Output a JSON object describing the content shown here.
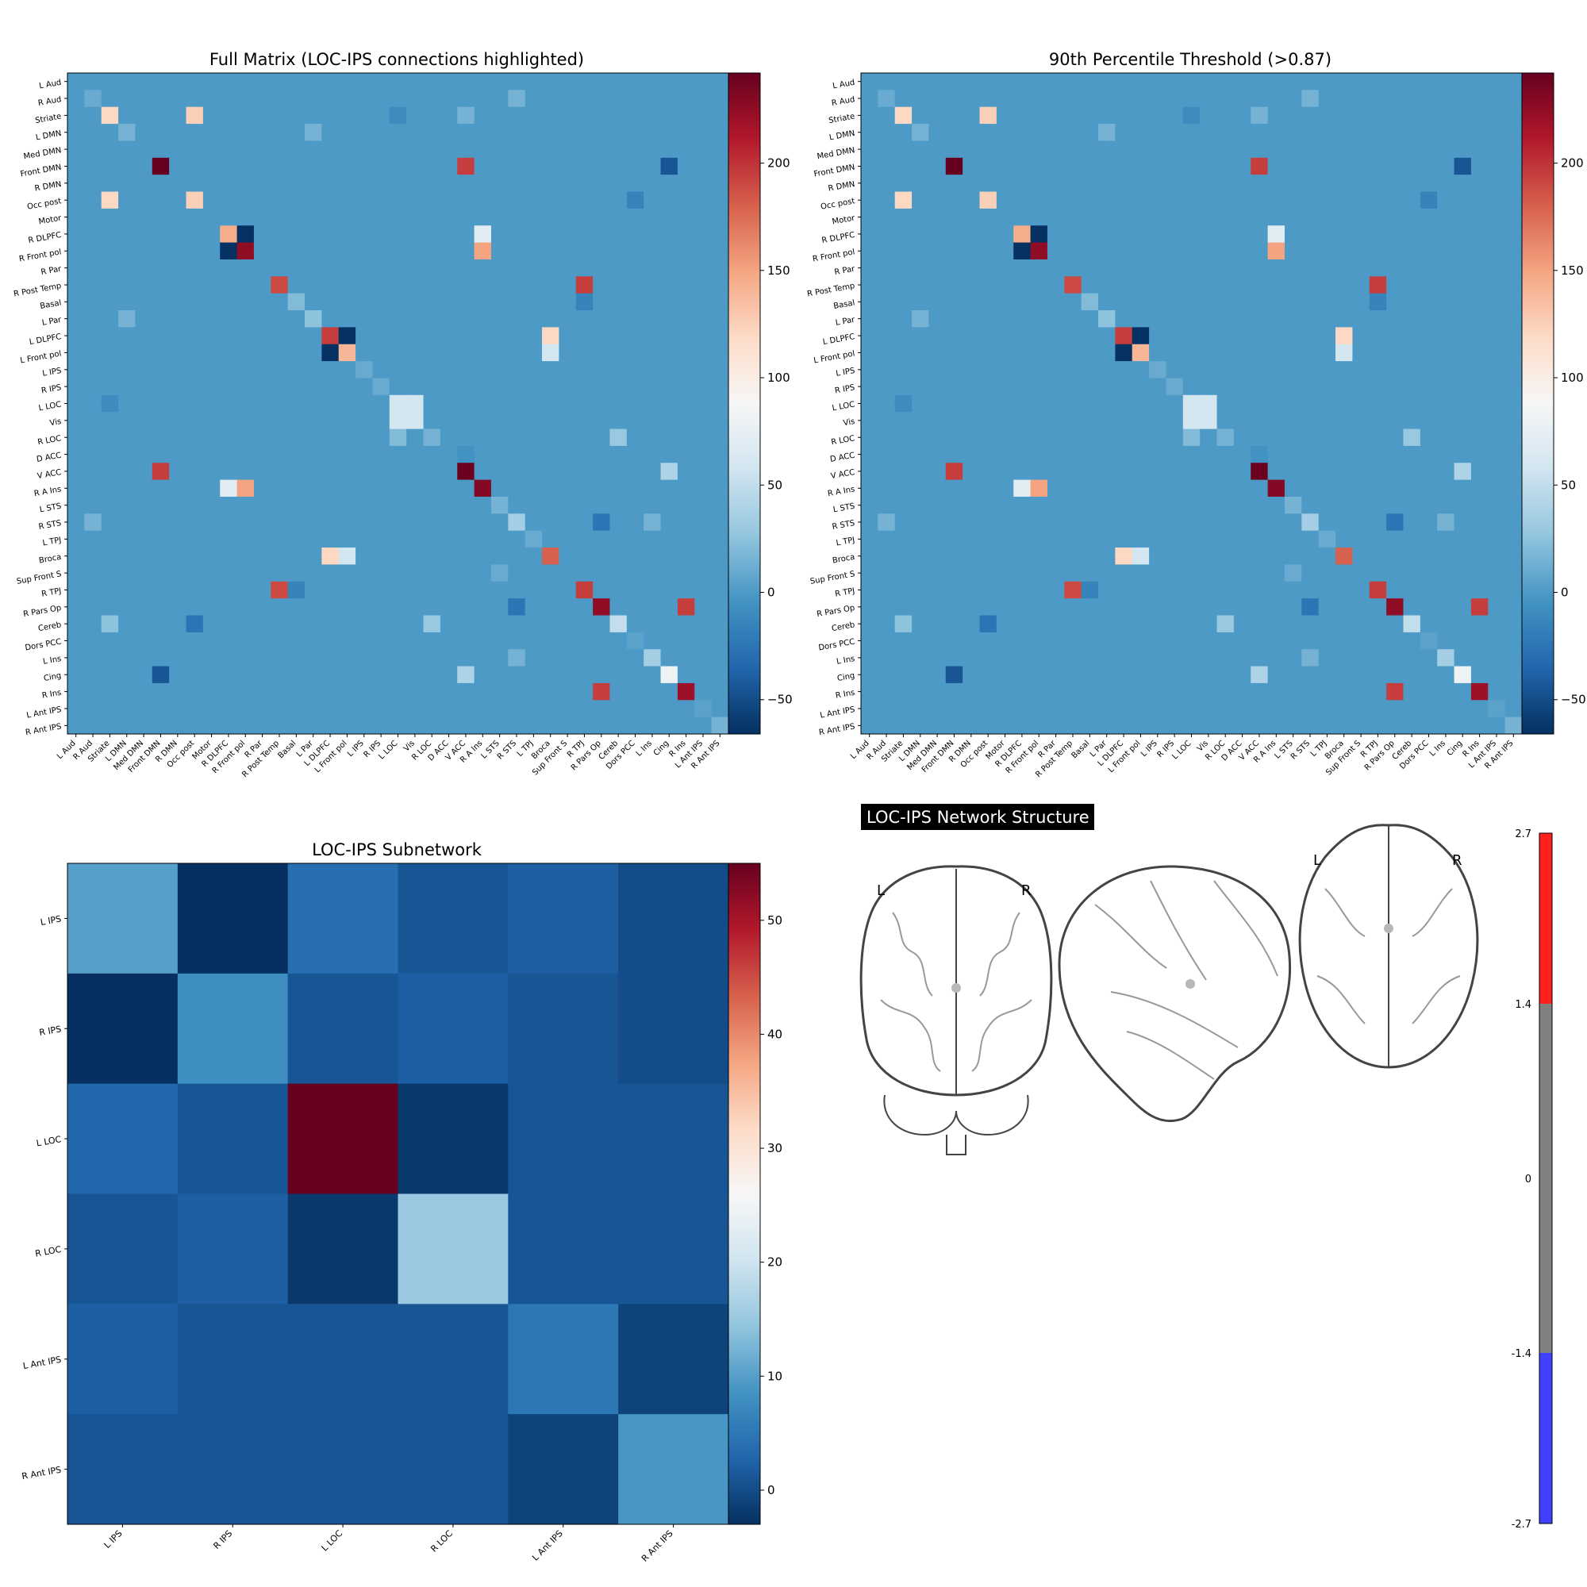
{
  "regions": [
    "L Aud",
    "R Aud",
    "Striate",
    "L DMN",
    "Med DMN",
    "Front DMN",
    "R DMN",
    "Occ post",
    "Motor",
    "R DLPFC",
    "R Front pol",
    "R Par",
    "R Post Temp",
    "Basal",
    "L Par",
    "L DLPFC",
    "L Front pol",
    "L IPS",
    "R IPS",
    "L LOC",
    "Vis",
    "R LOC",
    "D ACC",
    "V ACC",
    "R A Ins",
    "L STS",
    "R STS",
    "L TPJ",
    "Broca",
    "Sup Front S",
    "R TPJ",
    "R Pars Op",
    "Cereb",
    "Dors PCC",
    "L Ins",
    "Cing",
    "R Ins",
    "L Ant IPS",
    "R Ant IPS"
  ],
  "chart_data": [
    {
      "type": "heatmap",
      "title": "Full Matrix (LOC-IPS connections highlighted)",
      "colormap": "RdBu_r",
      "vmin": -66,
      "vmax": 242,
      "colorbar_ticks": [
        -50,
        0,
        50,
        100,
        150,
        200
      ],
      "background_value": 0,
      "cells": [
        [
          2,
          2,
          120
        ],
        [
          2,
          7,
          125
        ],
        [
          7,
          2,
          120
        ],
        [
          7,
          7,
          125
        ],
        [
          5,
          5,
          242
        ],
        [
          5,
          23,
          195
        ],
        [
          5,
          35,
          -45
        ],
        [
          23,
          5,
          195
        ],
        [
          23,
          23,
          240
        ],
        [
          35,
          5,
          -45
        ],
        [
          35,
          35,
          80
        ],
        [
          9,
          9,
          145
        ],
        [
          9,
          10,
          -65
        ],
        [
          10,
          9,
          -65
        ],
        [
          10,
          10,
          225
        ],
        [
          9,
          24,
          70
        ],
        [
          10,
          24,
          150
        ],
        [
          24,
          9,
          70
        ],
        [
          24,
          10,
          150
        ],
        [
          24,
          24,
          230
        ],
        [
          12,
          12,
          190
        ],
        [
          12,
          30,
          195
        ],
        [
          30,
          12,
          190
        ],
        [
          30,
          30,
          195
        ],
        [
          15,
          15,
          195
        ],
        [
          15,
          16,
          -65
        ],
        [
          16,
          15,
          -65
        ],
        [
          16,
          16,
          140
        ],
        [
          15,
          28,
          120
        ],
        [
          16,
          28,
          60
        ],
        [
          28,
          15,
          120
        ],
        [
          28,
          16,
          60
        ],
        [
          28,
          28,
          180
        ],
        [
          19,
          19,
          60
        ],
        [
          19,
          20,
          60
        ],
        [
          20,
          19,
          60
        ],
        [
          20,
          20,
          60
        ],
        [
          31,
          31,
          225
        ],
        [
          31,
          36,
          195
        ],
        [
          36,
          31,
          195
        ],
        [
          36,
          36,
          220
        ],
        [
          1,
          1,
          10
        ],
        [
          14,
          14,
          25
        ],
        [
          3,
          3,
          15
        ],
        [
          17,
          17,
          10
        ],
        [
          18,
          18,
          10
        ],
        [
          21,
          21,
          15
        ],
        [
          25,
          25,
          15
        ],
        [
          26,
          26,
          35
        ],
        [
          32,
          32,
          50
        ],
        [
          34,
          34,
          35
        ],
        [
          37,
          37,
          5
        ],
        [
          38,
          38,
          15
        ],
        [
          2,
          23,
          15
        ],
        [
          7,
          33,
          -15
        ],
        [
          32,
          2,
          25
        ],
        [
          32,
          7,
          -25
        ],
        [
          26,
          31,
          -25
        ],
        [
          31,
          26,
          -25
        ],
        [
          13,
          30,
          -15
        ],
        [
          30,
          13,
          -15
        ],
        [
          34,
          26,
          15
        ],
        [
          26,
          34,
          15
        ],
        [
          2,
          19,
          -10
        ],
        [
          19,
          2,
          -10
        ],
        [
          29,
          25,
          10
        ],
        [
          22,
          23,
          -5
        ],
        [
          21,
          19,
          20
        ],
        [
          13,
          13,
          20
        ],
        [
          27,
          27,
          10
        ],
        [
          33,
          33,
          5
        ],
        [
          3,
          14,
          15
        ],
        [
          14,
          3,
          15
        ],
        [
          26,
          1,
          15
        ],
        [
          1,
          26,
          15
        ],
        [
          35,
          23,
          40
        ],
        [
          23,
          35,
          40
        ],
        [
          21,
          32,
          30
        ],
        [
          32,
          21,
          30
        ]
      ]
    },
    {
      "type": "heatmap",
      "title": "90th Percentile Threshold (>0.87)",
      "colormap": "RdBu_r",
      "vmin": -66,
      "vmax": 242,
      "colorbar_ticks": [
        -50,
        0,
        50,
        100,
        150,
        200
      ],
      "background_value": 0,
      "cells": [
        [
          2,
          2,
          120
        ],
        [
          2,
          7,
          125
        ],
        [
          7,
          2,
          120
        ],
        [
          7,
          7,
          125
        ],
        [
          5,
          5,
          242
        ],
        [
          5,
          23,
          195
        ],
        [
          5,
          35,
          -45
        ],
        [
          23,
          5,
          195
        ],
        [
          23,
          23,
          240
        ],
        [
          35,
          5,
          -45
        ],
        [
          35,
          35,
          80
        ],
        [
          9,
          9,
          145
        ],
        [
          9,
          10,
          -65
        ],
        [
          10,
          9,
          -65
        ],
        [
          10,
          10,
          225
        ],
        [
          9,
          24,
          70
        ],
        [
          10,
          24,
          150
        ],
        [
          24,
          9,
          70
        ],
        [
          24,
          10,
          150
        ],
        [
          24,
          24,
          230
        ],
        [
          12,
          12,
          190
        ],
        [
          12,
          30,
          195
        ],
        [
          30,
          12,
          190
        ],
        [
          30,
          30,
          195
        ],
        [
          15,
          15,
          195
        ],
        [
          15,
          16,
          -65
        ],
        [
          16,
          15,
          -65
        ],
        [
          16,
          16,
          140
        ],
        [
          15,
          28,
          120
        ],
        [
          16,
          28,
          60
        ],
        [
          28,
          15,
          120
        ],
        [
          28,
          16,
          60
        ],
        [
          28,
          28,
          180
        ],
        [
          19,
          19,
          60
        ],
        [
          19,
          20,
          60
        ],
        [
          20,
          19,
          60
        ],
        [
          20,
          20,
          60
        ],
        [
          31,
          31,
          225
        ],
        [
          31,
          36,
          195
        ],
        [
          36,
          31,
          195
        ],
        [
          36,
          36,
          220
        ],
        [
          1,
          1,
          10
        ],
        [
          14,
          14,
          25
        ],
        [
          3,
          3,
          15
        ],
        [
          17,
          17,
          10
        ],
        [
          18,
          18,
          10
        ],
        [
          21,
          21,
          15
        ],
        [
          25,
          25,
          15
        ],
        [
          26,
          26,
          35
        ],
        [
          32,
          32,
          50
        ],
        [
          34,
          34,
          35
        ],
        [
          37,
          37,
          5
        ],
        [
          38,
          38,
          15
        ],
        [
          2,
          23,
          15
        ],
        [
          7,
          33,
          -15
        ],
        [
          32,
          2,
          25
        ],
        [
          32,
          7,
          -25
        ],
        [
          26,
          31,
          -25
        ],
        [
          31,
          26,
          -25
        ],
        [
          13,
          30,
          -15
        ],
        [
          30,
          13,
          -15
        ],
        [
          34,
          26,
          15
        ],
        [
          26,
          34,
          15
        ],
        [
          2,
          19,
          -10
        ],
        [
          19,
          2,
          -10
        ],
        [
          29,
          25,
          10
        ],
        [
          22,
          23,
          -5
        ],
        [
          21,
          19,
          20
        ],
        [
          13,
          13,
          20
        ],
        [
          27,
          27,
          10
        ],
        [
          33,
          33,
          5
        ],
        [
          3,
          14,
          15
        ],
        [
          14,
          3,
          15
        ],
        [
          26,
          1,
          15
        ],
        [
          1,
          26,
          15
        ],
        [
          35,
          23,
          40
        ],
        [
          23,
          35,
          40
        ],
        [
          21,
          32,
          30
        ],
        [
          32,
          21,
          30
        ]
      ]
    },
    {
      "type": "heatmap",
      "title": "LOC-IPS Subnetwork",
      "colormap": "RdBu_r",
      "vmin": -3,
      "vmax": 55,
      "colorbar_ticks": [
        0,
        10,
        20,
        30,
        40,
        50
      ],
      "labels": [
        "L IPS",
        "R IPS",
        "L LOC",
        "R LOC",
        "L Ant IPS",
        "R Ant IPS"
      ],
      "matrix": [
        [
          10,
          -3,
          4,
          1,
          2,
          0
        ],
        [
          -3,
          8,
          1,
          2,
          1,
          0
        ],
        [
          3,
          1,
          55,
          -2,
          1,
          1
        ],
        [
          1,
          2,
          -2,
          15,
          1,
          1
        ],
        [
          2,
          1,
          1,
          1,
          5,
          -1
        ],
        [
          1,
          1,
          1,
          1,
          -1,
          9
        ]
      ]
    }
  ],
  "glass_brain": {
    "title": "LOC-IPS Network Structure",
    "left_label": "L",
    "right_label": "R",
    "colorbar_ticks": [
      "2.7",
      "1.4",
      "0",
      "-1.4",
      "-2.7"
    ]
  }
}
